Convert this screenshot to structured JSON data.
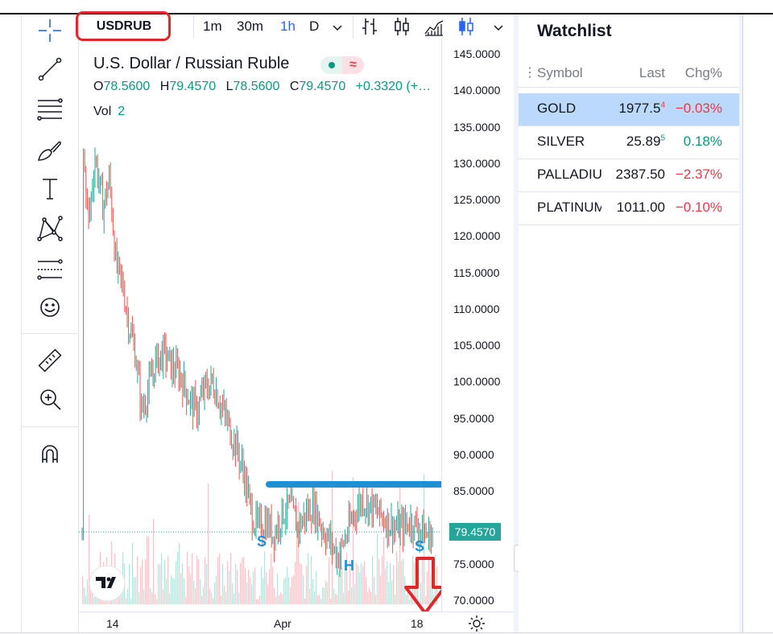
{
  "header": {
    "symbol": "USDRUB",
    "intervals": [
      "1m",
      "30m",
      "1h",
      "D"
    ],
    "active_interval": "1h"
  },
  "toolbar": {
    "tools": [
      "crosshair-icon",
      "trend-line-icon",
      "fib-retracement-icon",
      "brush-icon",
      "text-icon",
      "pattern-icon",
      "forecast-icon",
      "emoji-icon",
      "ruler-icon",
      "zoom-in-icon",
      "magnet-icon"
    ]
  },
  "legend": {
    "title": "U.S. Dollar / Russian Ruble",
    "open_label": "O",
    "open": "78.5600",
    "high_label": "H",
    "high": "79.4570",
    "low_label": "L",
    "low": "78.5600",
    "close_label": "C",
    "close": "79.4570",
    "change": "+0.3320 (+…",
    "pill_icon": "≈",
    "vol_label": "Vol",
    "vol_value": "2"
  },
  "price_axis": {
    "ticks": [
      "145.0000",
      "140.0000",
      "135.0000",
      "130.0000",
      "125.0000",
      "120.0000",
      "115.0000",
      "110.0000",
      "105.0000",
      "100.0000",
      "95.0000",
      "90.0000",
      "85.0000",
      "79.4570",
      "75.0000",
      "70.0000"
    ],
    "last_price": "79.4570"
  },
  "time_axis": {
    "labels": [
      "14",
      "Apr",
      "18"
    ]
  },
  "annotations": {
    "left_shoulder": "S",
    "head": "H",
    "right_shoulder": "S",
    "neckline_price": 86.0
  },
  "watchlist": {
    "title": "Watchlist",
    "columns": [
      "Symbol",
      "Last",
      "Chg%"
    ],
    "rows": [
      {
        "symbol": "GOLD",
        "last_main": "1977.5",
        "last_tail": "4",
        "chg": "−0.03%",
        "dir": "neg",
        "selected": true
      },
      {
        "symbol": "SILVER",
        "last_main": "25.89",
        "last_tail": "5",
        "chg": "0.18%",
        "dir": "pos",
        "selected": false
      },
      {
        "symbol": "PALLADIUM",
        "last_main": "2387.50",
        "last_tail": "",
        "chg": "−2.37%",
        "dir": "neg",
        "selected": false
      },
      {
        "symbol": "PLATINUM",
        "last_main": "1011.00",
        "last_tail": "",
        "chg": "−0.10%",
        "dir": "neg",
        "selected": false
      }
    ]
  },
  "colors": {
    "up": "#26a69a",
    "down": "#ef5350",
    "accent": "#2962ff",
    "neckline": "#1e90d6",
    "marker": "#e3262a"
  }
}
